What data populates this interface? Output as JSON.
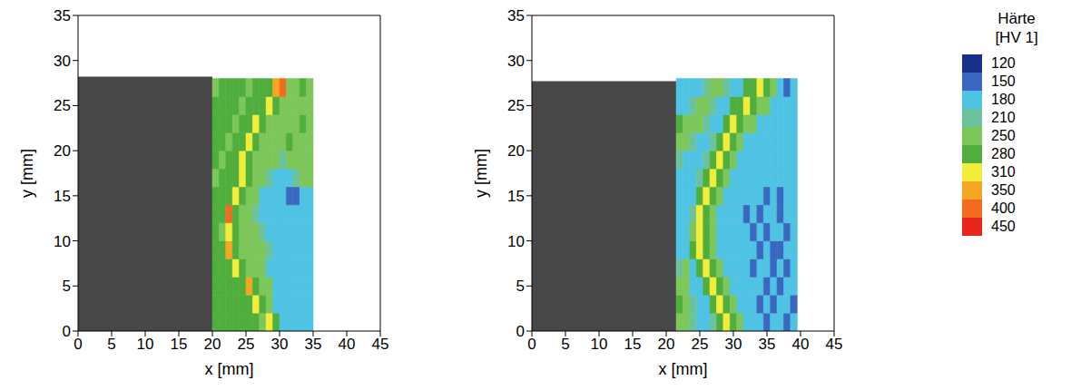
{
  "chart_data": [
    {
      "type": "heatmap",
      "xlabel": "x [mm]",
      "ylabel": "y [mm]",
      "xlim": [
        0,
        45
      ],
      "ylim": [
        0,
        35
      ],
      "xticks": [
        0,
        5,
        10,
        15,
        20,
        25,
        30,
        35,
        40,
        45
      ],
      "yticks": [
        0,
        5,
        10,
        15,
        20,
        25,
        30,
        35
      ],
      "image_extent": {
        "x": [
          0,
          20
        ],
        "y": [
          0,
          28.2
        ]
      },
      "cells": {
        "x": [
          20.5,
          21.5,
          22.5,
          23.5,
          24.5,
          25.5,
          26.5,
          27.5,
          28.5,
          29.5,
          30.5,
          31.5,
          32.5,
          33.5,
          34.5
        ],
        "y": [
          1,
          3,
          5,
          7,
          9,
          11,
          13,
          15,
          17,
          19,
          21,
          23,
          25,
          27
        ],
        "values": [
          [
            295,
            295,
            295,
            295,
            295,
            295,
            295,
            265,
            330,
            295,
            195,
            195,
            195,
            195,
            195
          ],
          [
            295,
            295,
            295,
            295,
            295,
            295,
            330,
            295,
            265,
            195,
            195,
            195,
            195,
            195,
            195
          ],
          [
            295,
            295,
            295,
            295,
            295,
            375,
            295,
            265,
            265,
            195,
            195,
            195,
            195,
            195,
            195
          ],
          [
            295,
            295,
            295,
            330,
            295,
            265,
            265,
            265,
            195,
            195,
            195,
            195,
            195,
            195,
            195
          ],
          [
            295,
            295,
            375,
            295,
            265,
            265,
            265,
            265,
            230,
            195,
            195,
            195,
            195,
            195,
            195
          ],
          [
            295,
            265,
            330,
            295,
            265,
            265,
            265,
            230,
            195,
            195,
            195,
            195,
            195,
            195,
            195
          ],
          [
            295,
            295,
            425,
            295,
            265,
            265,
            230,
            195,
            195,
            195,
            195,
            195,
            195,
            195,
            195
          ],
          [
            295,
            295,
            295,
            330,
            295,
            265,
            265,
            195,
            195,
            195,
            195,
            165,
            165,
            195,
            195
          ],
          [
            265,
            295,
            295,
            295,
            330,
            295,
            265,
            265,
            230,
            195,
            195,
            195,
            230,
            265,
            265
          ],
          [
            295,
            265,
            295,
            295,
            330,
            295,
            265,
            265,
            265,
            265,
            230,
            265,
            265,
            265,
            265
          ],
          [
            295,
            295,
            265,
            295,
            295,
            330,
            295,
            265,
            265,
            265,
            265,
            295,
            265,
            265,
            265
          ],
          [
            295,
            295,
            295,
            265,
            295,
            295,
            330,
            295,
            265,
            265,
            265,
            265,
            265,
            295,
            265
          ],
          [
            295,
            295,
            295,
            295,
            265,
            295,
            295,
            295,
            330,
            295,
            265,
            265,
            265,
            265,
            265
          ],
          [
            265,
            295,
            295,
            295,
            295,
            265,
            295,
            295,
            295,
            375,
            425,
            265,
            265,
            295,
            265
          ]
        ]
      }
    },
    {
      "type": "heatmap",
      "xlabel": "x [mm]",
      "ylabel": "y [mm]",
      "xlim": [
        0,
        45
      ],
      "ylim": [
        0,
        35
      ],
      "xticks": [
        0,
        5,
        10,
        15,
        20,
        25,
        30,
        35,
        40,
        45
      ],
      "yticks": [
        0,
        5,
        10,
        15,
        20,
        25,
        30,
        35
      ],
      "image_extent": {
        "x": [
          0,
          21.5
        ],
        "y": [
          0,
          27.7
        ]
      },
      "cells": {
        "x": [
          22,
          23,
          24,
          25,
          26,
          27,
          28,
          29,
          30,
          31,
          32,
          33,
          34,
          35,
          36,
          37,
          38,
          39
        ],
        "y": [
          1,
          3,
          5,
          7,
          9,
          11,
          13,
          15,
          17,
          19,
          21,
          23,
          25,
          27
        ],
        "values": [
          [
            265,
            265,
            230,
            195,
            195,
            230,
            295,
            330,
            295,
            265,
            195,
            195,
            195,
            165,
            195,
            195,
            165,
            195
          ],
          [
            295,
            265,
            230,
            195,
            195,
            295,
            330,
            295,
            265,
            195,
            195,
            195,
            165,
            195,
            165,
            195,
            195,
            165
          ],
          [
            265,
            265,
            195,
            195,
            295,
            330,
            295,
            265,
            195,
            195,
            195,
            195,
            195,
            165,
            195,
            165,
            195,
            195
          ],
          [
            230,
            265,
            195,
            295,
            330,
            295,
            265,
            195,
            195,
            195,
            195,
            165,
            195,
            195,
            165,
            195,
            165,
            195
          ],
          [
            195,
            195,
            295,
            330,
            295,
            265,
            195,
            195,
            195,
            195,
            195,
            195,
            165,
            195,
            165,
            165,
            195,
            195
          ],
          [
            195,
            195,
            265,
            330,
            295,
            265,
            195,
            195,
            195,
            195,
            195,
            165,
            195,
            165,
            195,
            195,
            165,
            195
          ],
          [
            195,
            195,
            230,
            330,
            295,
            265,
            195,
            195,
            195,
            195,
            165,
            195,
            165,
            195,
            195,
            165,
            195,
            195
          ],
          [
            195,
            195,
            195,
            295,
            330,
            295,
            265,
            195,
            195,
            195,
            195,
            195,
            195,
            165,
            195,
            165,
            195,
            195
          ],
          [
            195,
            195,
            195,
            230,
            295,
            330,
            295,
            265,
            195,
            195,
            195,
            195,
            195,
            195,
            195,
            195,
            195,
            195
          ],
          [
            230,
            195,
            195,
            195,
            230,
            295,
            330,
            295,
            265,
            195,
            195,
            195,
            195,
            195,
            195,
            195,
            195,
            195
          ],
          [
            265,
            265,
            230,
            195,
            195,
            230,
            295,
            330,
            295,
            265,
            195,
            195,
            195,
            195,
            195,
            195,
            195,
            195
          ],
          [
            295,
            265,
            265,
            265,
            230,
            195,
            195,
            295,
            330,
            295,
            265,
            265,
            195,
            195,
            195,
            195,
            195,
            195
          ],
          [
            195,
            195,
            230,
            265,
            265,
            230,
            195,
            195,
            295,
            295,
            330,
            295,
            265,
            265,
            195,
            195,
            195,
            195
          ],
          [
            195,
            195,
            195,
            195,
            230,
            265,
            265,
            230,
            195,
            195,
            295,
            295,
            330,
            295,
            265,
            195,
            165,
            195
          ]
        ]
      }
    }
  ],
  "colorbar": {
    "title": [
      "Härte",
      "[HV 1]"
    ],
    "levels": [
      120,
      150,
      180,
      210,
      250,
      280,
      310,
      350,
      400,
      450
    ],
    "colors": [
      "#1a2f8a",
      "#3a68c0",
      "#4ec3e3",
      "#6cc29c",
      "#7cc65a",
      "#4fae3c",
      "#f2ec3a",
      "#f5a623",
      "#f36b21",
      "#e8261e"
    ]
  }
}
